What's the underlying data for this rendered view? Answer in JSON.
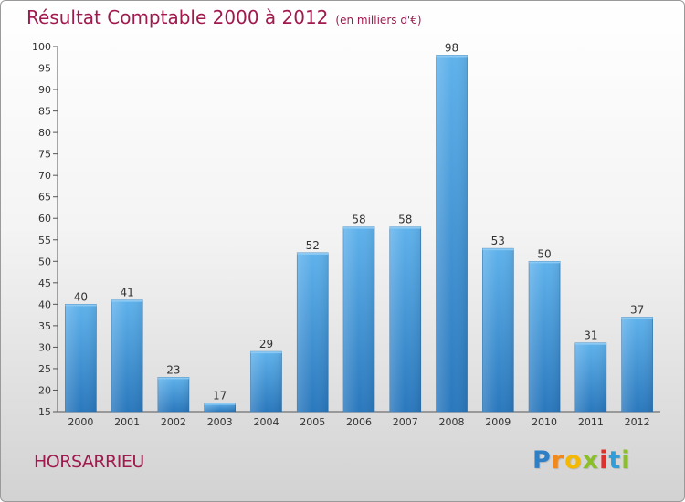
{
  "title": "Résultat Comptable 2000 à 2012",
  "subtitle": "(en milliers d'€)",
  "commune": "HORSARRIEU",
  "logo": {
    "letters": [
      "P",
      "r",
      "o",
      "x",
      "i",
      "t",
      "i"
    ],
    "colors": [
      "#2f7fc6",
      "#f08a1c",
      "#f5b800",
      "#8bbf2a",
      "#e0302e",
      "#2f9ed8",
      "#8bbf2a"
    ]
  },
  "chart_data": {
    "type": "bar",
    "title": "Résultat Comptable 2000 à 2012",
    "subtitle": "(en milliers d'€)",
    "xlabel": "",
    "ylabel": "",
    "categories": [
      "2000",
      "2001",
      "2002",
      "2003",
      "2004",
      "2005",
      "2006",
      "2007",
      "2008",
      "2009",
      "2010",
      "2011",
      "2012"
    ],
    "values": [
      40,
      41,
      23,
      17,
      29,
      52,
      58,
      58,
      98,
      53,
      50,
      31,
      37
    ],
    "ylim": [
      15,
      100
    ],
    "yticks": [
      15,
      20,
      25,
      30,
      35,
      40,
      45,
      50,
      55,
      60,
      65,
      70,
      75,
      80,
      85,
      90,
      95,
      100
    ],
    "grid": false,
    "bar_color": "#3d94d8"
  }
}
